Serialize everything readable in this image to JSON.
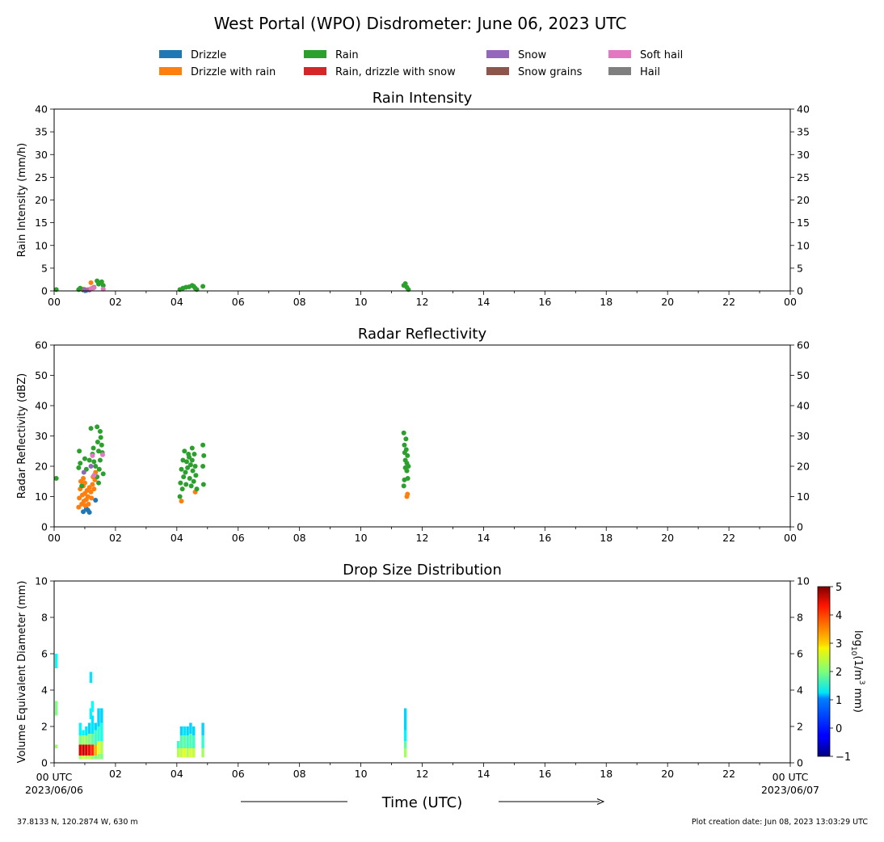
{
  "figure": {
    "title": "West Portal (WPO) Disdrometer: June 06, 2023 UTC",
    "xlabel": "Time (UTC)",
    "start_label": "00 UTC",
    "start_date": "2023/06/06",
    "end_label": "00 UTC",
    "end_date": "2023/06/07",
    "footer_left": "37.8133 N, 120.2874 W, 630 m",
    "footer_right": "Plot creation date: Jun 08, 2023 13:03:29 UTC"
  },
  "legend": [
    {
      "label": "Drizzle",
      "color": "#1f77b4"
    },
    {
      "label": "Drizzle with rain",
      "color": "#ff7f0e"
    },
    {
      "label": "Rain",
      "color": "#2ca02c"
    },
    {
      "label": "Rain, drizzle with snow",
      "color": "#d62728"
    },
    {
      "label": "Snow",
      "color": "#9467bd"
    },
    {
      "label": "Snow grains",
      "color": "#8c564b"
    },
    {
      "label": "Soft hail",
      "color": "#e377c2"
    },
    {
      "label": "Hail",
      "color": "#7f7f7f"
    }
  ],
  "chart_data": [
    {
      "type": "scatter",
      "title": "Rain Intensity",
      "ylabel": "Rain Intensity (mm/h)",
      "xlim": [
        0,
        24
      ],
      "ylim": [
        0,
        40
      ],
      "x_tick_labels": [
        "00",
        "02",
        "04",
        "06",
        "08",
        "10",
        "12",
        "14",
        "16",
        "18",
        "20",
        "22",
        "00"
      ],
      "y_tick_labels": [
        "0",
        "5",
        "10",
        "15",
        "20",
        "25",
        "30",
        "35",
        "40"
      ],
      "series": [
        {
          "name": "Drizzle",
          "color": "#1f77b4",
          "points": [
            [
              0.95,
              0.2
            ],
            [
              1.05,
              0.1
            ]
          ]
        },
        {
          "name": "Drizzle with rain",
          "color": "#ff7f0e",
          "points": [
            [
              0.85,
              0.5
            ],
            [
              0.95,
              0.4
            ],
            [
              1.0,
              0.3
            ],
            [
              1.1,
              0.3
            ],
            [
              1.2,
              1.8
            ],
            [
              1.25,
              0.6
            ]
          ]
        },
        {
          "name": "Rain",
          "color": "#2ca02c",
          "points": [
            [
              0.07,
              0.3
            ],
            [
              0.8,
              0.3
            ],
            [
              0.85,
              0.6
            ],
            [
              1.3,
              0.8
            ],
            [
              1.4,
              2.2
            ],
            [
              1.45,
              1.5
            ],
            [
              1.5,
              1.8
            ],
            [
              1.55,
              2.0
            ],
            [
              1.6,
              1.2
            ],
            [
              4.1,
              0.3
            ],
            [
              4.2,
              0.6
            ],
            [
              4.3,
              0.8
            ],
            [
              4.4,
              0.9
            ],
            [
              4.5,
              1.2
            ],
            [
              4.55,
              1.0
            ],
            [
              4.6,
              0.6
            ],
            [
              4.65,
              0.3
            ],
            [
              4.85,
              1.0
            ],
            [
              11.4,
              1.2
            ],
            [
              11.45,
              1.6
            ],
            [
              11.5,
              0.8
            ],
            [
              11.55,
              0.3
            ]
          ]
        },
        {
          "name": "Snow",
          "color": "#9467bd",
          "points": [
            [
              1.0,
              0.3
            ],
            [
              1.15,
              0.2
            ]
          ]
        },
        {
          "name": "Soft hail",
          "color": "#e377c2",
          "points": [
            [
              1.2,
              0.5
            ],
            [
              1.3,
              0.7
            ],
            [
              1.6,
              0.4
            ]
          ]
        }
      ]
    },
    {
      "type": "scatter",
      "title": "Radar Reflectivity",
      "ylabel": "Radar Reflectivity (dBZ)",
      "xlim": [
        0,
        24
      ],
      "ylim": [
        0,
        60
      ],
      "x_tick_labels": [
        "00",
        "02",
        "04",
        "06",
        "08",
        "10",
        "12",
        "14",
        "16",
        "18",
        "20",
        "22",
        "00"
      ],
      "y_tick_labels": [
        "0",
        "10",
        "20",
        "30",
        "40",
        "50",
        "60"
      ],
      "series": [
        {
          "name": "Drizzle",
          "color": "#1f77b4",
          "points": [
            [
              0.95,
              5.0
            ],
            [
              1.1,
              5.5
            ],
            [
              1.15,
              4.8
            ],
            [
              1.35,
              8.8
            ],
            [
              1.05,
              6.0
            ]
          ]
        },
        {
          "name": "Drizzle with rain",
          "color": "#ff7f0e",
          "points": [
            [
              0.8,
              6.5
            ],
            [
              0.82,
              9.5
            ],
            [
              0.85,
              12.5
            ],
            [
              0.87,
              15.0
            ],
            [
              0.9,
              7.5
            ],
            [
              0.92,
              10.5
            ],
            [
              0.95,
              13.5
            ],
            [
              0.95,
              16.0
            ],
            [
              0.97,
              8.5
            ],
            [
              1.0,
              11.0
            ],
            [
              1.0,
              14.5
            ],
            [
              1.02,
              7.0
            ],
            [
              1.05,
              9.0
            ],
            [
              1.07,
              12.0
            ],
            [
              1.1,
              10.0
            ],
            [
              1.12,
              7.5
            ],
            [
              1.15,
              13.0
            ],
            [
              1.2,
              11.5
            ],
            [
              1.22,
              9.5
            ],
            [
              1.25,
              14.0
            ],
            [
              1.27,
              16.5
            ],
            [
              1.3,
              12.5
            ],
            [
              1.33,
              15.5
            ],
            [
              1.35,
              18.0
            ],
            [
              4.15,
              8.5
            ],
            [
              4.6,
              11.5
            ],
            [
              11.5,
              10.0
            ],
            [
              11.52,
              10.8
            ]
          ]
        },
        {
          "name": "Rain",
          "color": "#2ca02c",
          "points": [
            [
              0.07,
              16.0
            ],
            [
              0.8,
              19.5
            ],
            [
              0.82,
              25.0
            ],
            [
              0.85,
              21.0
            ],
            [
              0.9,
              13.5
            ],
            [
              1.0,
              22.5
            ],
            [
              1.05,
              19.0
            ],
            [
              1.15,
              22.0
            ],
            [
              1.2,
              32.5
            ],
            [
              1.25,
              24.0
            ],
            [
              1.28,
              26.0
            ],
            [
              1.3,
              21.5
            ],
            [
              1.35,
              20.0
            ],
            [
              1.4,
              33.0
            ],
            [
              1.42,
              28.0
            ],
            [
              1.45,
              25.0
            ],
            [
              1.47,
              19.0
            ],
            [
              1.5,
              31.5
            ],
            [
              1.5,
              22.0
            ],
            [
              1.52,
              29.5
            ],
            [
              1.55,
              27.0
            ],
            [
              1.57,
              24.5
            ],
            [
              1.6,
              17.5
            ],
            [
              1.45,
              14.5
            ],
            [
              1.4,
              16.5
            ],
            [
              4.1,
              10.0
            ],
            [
              4.12,
              14.5
            ],
            [
              4.15,
              19.0
            ],
            [
              4.18,
              12.5
            ],
            [
              4.2,
              22.0
            ],
            [
              4.22,
              16.5
            ],
            [
              4.25,
              25.0
            ],
            [
              4.28,
              18.0
            ],
            [
              4.3,
              14.0
            ],
            [
              4.32,
              21.5
            ],
            [
              4.35,
              19.5
            ],
            [
              4.38,
              24.0
            ],
            [
              4.4,
              23.0
            ],
            [
              4.42,
              16.0
            ],
            [
              4.45,
              20.5
            ],
            [
              4.47,
              13.5
            ],
            [
              4.5,
              26.0
            ],
            [
              4.5,
              22.0
            ],
            [
              4.52,
              18.5
            ],
            [
              4.55,
              15.0
            ],
            [
              4.57,
              24.0
            ],
            [
              4.6,
              20.0
            ],
            [
              4.62,
              17.0
            ],
            [
              4.65,
              12.5
            ],
            [
              4.85,
              27.0
            ],
            [
              4.85,
              20.0
            ],
            [
              4.87,
              14.0
            ],
            [
              4.88,
              23.5
            ],
            [
              11.4,
              31.0
            ],
            [
              11.42,
              27.0
            ],
            [
              11.43,
              24.5
            ],
            [
              11.45,
              22.0
            ],
            [
              11.45,
              19.5
            ],
            [
              11.47,
              29.0
            ],
            [
              11.48,
              25.5
            ],
            [
              11.5,
              21.0
            ],
            [
              11.5,
              18.5
            ],
            [
              11.52,
              23.5
            ],
            [
              11.53,
              16.0
            ],
            [
              11.55,
              20.0
            ],
            [
              11.4,
              13.5
            ],
            [
              11.42,
              15.5
            ]
          ]
        },
        {
          "name": "Snow",
          "color": "#9467bd",
          "points": [
            [
              0.97,
              18.0
            ],
            [
              1.2,
              20.0
            ]
          ]
        },
        {
          "name": "Soft hail",
          "color": "#e377c2",
          "points": [
            [
              1.25,
              23.5
            ],
            [
              1.3,
              17.0
            ],
            [
              1.58,
              23.8
            ]
          ]
        }
      ]
    },
    {
      "type": "heatmap",
      "title": "Drop Size Distribution",
      "ylabel": "Volume Equivalent Diameter (mm)",
      "xlim": [
        0,
        24
      ],
      "ylim": [
        0,
        10
      ],
      "x_tick_labels": [
        "00 UTC",
        "02",
        "04",
        "06",
        "08",
        "10",
        "12",
        "14",
        "16",
        "18",
        "20",
        "22",
        "00 UTC"
      ],
      "y_tick_labels": [
        "0",
        "2",
        "4",
        "6",
        "8",
        "10"
      ],
      "colorbar": {
        "label": "log10(1/m3 mm)",
        "range": [
          -1,
          5
        ],
        "tick_labels": [
          "−1",
          "0",
          "1",
          "2",
          "3",
          "4",
          "5"
        ]
      },
      "cells": [
        [
          0.07,
          5.2,
          6.0,
          1.3
        ],
        [
          0.07,
          2.6,
          3.4,
          2.0
        ],
        [
          0.07,
          0.8,
          1.0,
          2.2
        ],
        [
          0.85,
          0.2,
          0.4,
          2.2
        ],
        [
          0.85,
          0.4,
          1.0,
          4.4
        ],
        [
          0.85,
          1.0,
          1.5,
          2.0
        ],
        [
          0.85,
          1.5,
          2.2,
          1.2
        ],
        [
          0.95,
          0.2,
          0.4,
          2.5
        ],
        [
          0.95,
          0.4,
          1.0,
          4.6
        ],
        [
          0.95,
          1.0,
          1.5,
          2.2
        ],
        [
          0.95,
          1.5,
          1.8,
          1.2
        ],
        [
          1.05,
          0.2,
          0.4,
          2.3
        ],
        [
          1.05,
          0.4,
          1.0,
          4.5
        ],
        [
          1.05,
          1.0,
          1.5,
          2.1
        ],
        [
          1.05,
          1.5,
          2.0,
          1.1
        ],
        [
          1.15,
          0.2,
          0.4,
          2.4
        ],
        [
          1.15,
          0.4,
          1.0,
          4.2
        ],
        [
          1.15,
          1.0,
          1.6,
          2.0
        ],
        [
          1.15,
          1.6,
          2.2,
          1.0
        ],
        [
          1.2,
          4.4,
          5.0,
          1.1
        ],
        [
          1.2,
          2.4,
          3.0,
          1.2
        ],
        [
          1.25,
          0.2,
          0.4,
          2.2
        ],
        [
          1.25,
          0.4,
          1.0,
          4.0
        ],
        [
          1.25,
          1.0,
          1.6,
          1.8
        ],
        [
          1.25,
          1.6,
          2.6,
          1.1
        ],
        [
          1.25,
          2.8,
          3.4,
          1.3
        ],
        [
          1.35,
          0.2,
          0.4,
          2.0
        ],
        [
          1.35,
          0.4,
          1.0,
          3.2
        ],
        [
          1.35,
          1.0,
          1.8,
          1.6
        ],
        [
          1.35,
          1.8,
          2.2,
          1.0
        ],
        [
          1.45,
          0.2,
          0.5,
          2.1
        ],
        [
          1.45,
          0.5,
          1.2,
          2.6
        ],
        [
          1.45,
          1.2,
          2.0,
          1.5
        ],
        [
          1.45,
          2.0,
          3.0,
          1.0
        ],
        [
          1.55,
          0.2,
          0.5,
          2.0
        ],
        [
          1.55,
          0.5,
          1.2,
          2.3
        ],
        [
          1.55,
          1.2,
          2.2,
          1.4
        ],
        [
          1.55,
          2.2,
          3.0,
          1.0
        ],
        [
          4.05,
          0.3,
          0.8,
          2.3
        ],
        [
          4.05,
          0.8,
          1.2,
          1.6
        ],
        [
          4.15,
          0.3,
          0.8,
          2.4
        ],
        [
          4.15,
          0.8,
          1.5,
          1.7
        ],
        [
          4.15,
          1.5,
          2.0,
          1.0
        ],
        [
          4.25,
          0.3,
          0.8,
          2.6
        ],
        [
          4.25,
          0.8,
          1.5,
          1.8
        ],
        [
          4.25,
          1.5,
          2.0,
          1.1
        ],
        [
          4.35,
          0.3,
          0.8,
          2.3
        ],
        [
          4.35,
          0.8,
          1.5,
          1.6
        ],
        [
          4.35,
          1.5,
          2.0,
          1.0
        ],
        [
          4.45,
          0.3,
          0.8,
          2.5
        ],
        [
          4.45,
          0.8,
          1.6,
          1.7
        ],
        [
          4.45,
          1.6,
          2.2,
          1.0
        ],
        [
          4.55,
          0.3,
          0.8,
          2.4
        ],
        [
          4.55,
          0.8,
          1.5,
          1.6
        ],
        [
          4.55,
          1.5,
          2.0,
          1.0
        ],
        [
          4.85,
          0.3,
          0.8,
          2.2
        ],
        [
          4.85,
          0.8,
          1.5,
          1.5
        ],
        [
          4.85,
          1.5,
          2.2,
          1.0
        ],
        [
          11.45,
          0.3,
          0.8,
          2.2
        ],
        [
          11.45,
          0.8,
          1.2,
          1.8
        ],
        [
          11.45,
          1.2,
          1.8,
          1.2
        ],
        [
          11.45,
          1.8,
          2.6,
          1.0
        ],
        [
          11.45,
          2.6,
          3.0,
          1.0
        ]
      ]
    }
  ]
}
